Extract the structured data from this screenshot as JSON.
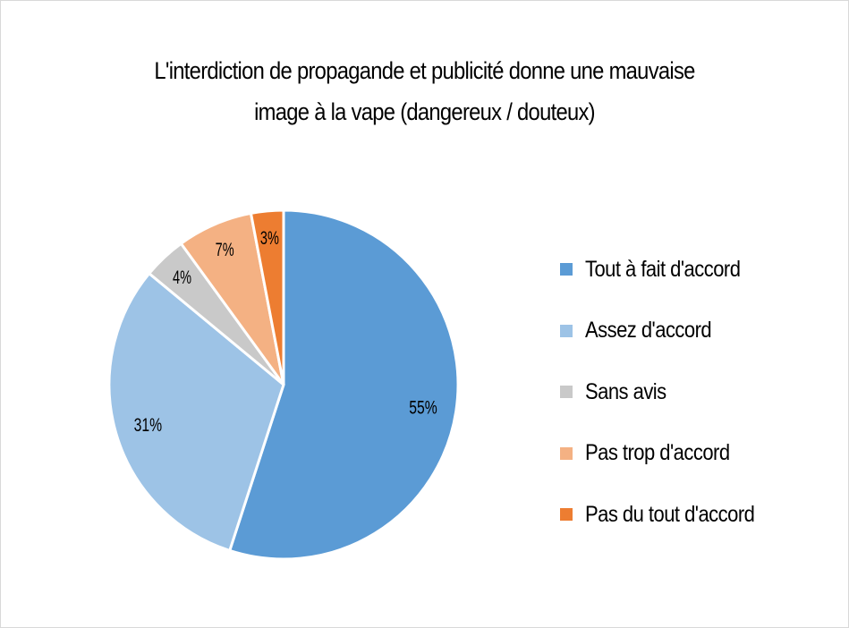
{
  "chart_data": {
    "type": "pie",
    "title": "L'interdiction de propagande et publicité donne une mauvaise image à la vape (dangereux / douteux)",
    "title_lines": [
      "L'interdiction de propagande et publicité donne une mauvaise",
      "image à la vape (dangereux / douteux)"
    ],
    "categories": [
      "Tout à fait d'accord",
      "Assez d'accord",
      "Sans avis",
      "Pas trop d'accord",
      "Pas du tout d'accord"
    ],
    "values": [
      55,
      31,
      4,
      7,
      3
    ],
    "data_labels": [
      "55%",
      "31%",
      "4%",
      "7%",
      "3%"
    ],
    "colors": [
      "#5B9BD5",
      "#9DC3E6",
      "#C9C9C9",
      "#F4B183",
      "#ED7D31"
    ],
    "legend_position": "right"
  }
}
